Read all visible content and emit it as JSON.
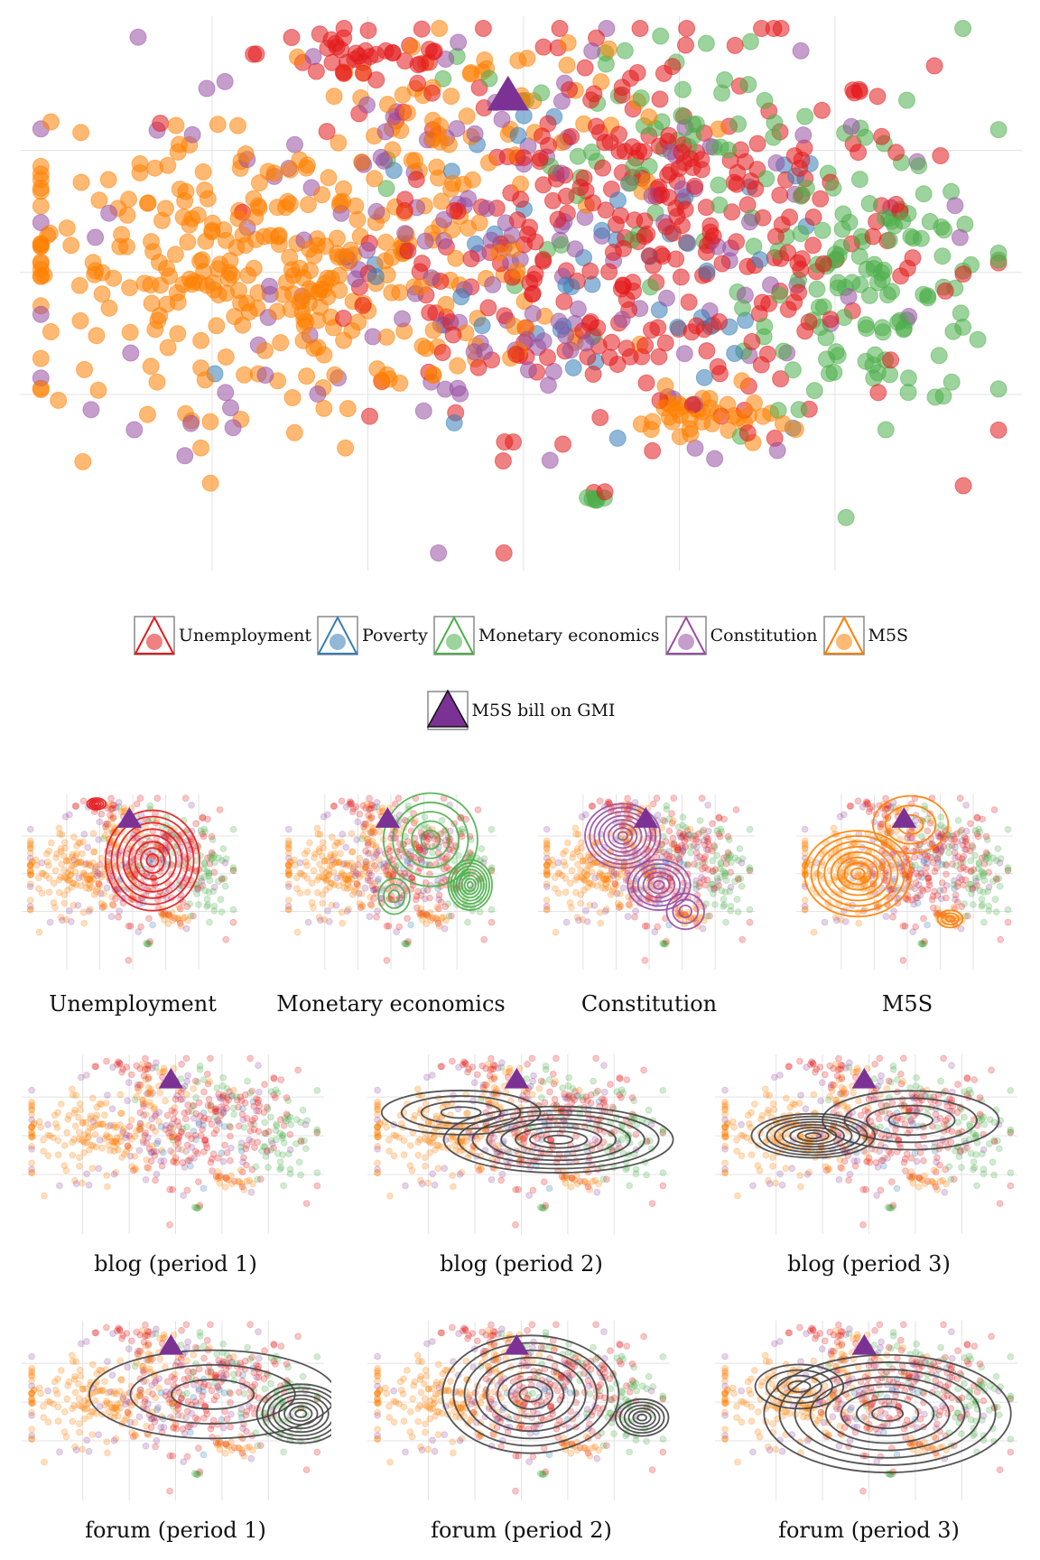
{
  "colors": {
    "unemployment": "#e41a1c",
    "poverty": "#377eb8",
    "monetary": "#4daf4a",
    "constitution": "#984ea3",
    "m5s": "#ff7f00",
    "bill": "#7b3294",
    "kde_gray": "#444444"
  },
  "legend": {
    "items": [
      {
        "key": "unemployment",
        "label": "Unemployment"
      },
      {
        "key": "poverty",
        "label": "Poverty"
      },
      {
        "key": "monetary",
        "label": "Monetary economics"
      },
      {
        "key": "constitution",
        "label": "Constitution"
      },
      {
        "key": "m5s",
        "label": "M5S"
      }
    ],
    "bill_label": "M5S bill on GMI"
  },
  "panels": {
    "topics": [
      "Unemployment",
      "Monetary economics",
      "Constitution",
      "M5S"
    ],
    "blog": [
      "blog (period 1)",
      "blog (period 2)",
      "blog (period 3)"
    ],
    "forum": [
      "forum (period 1)",
      "forum (period 2)",
      "forum (period 3)"
    ]
  },
  "chart_data": {
    "type": "scatter",
    "title": "",
    "xlabel": "",
    "ylabel": "",
    "xlim": [
      -3.2,
      3.2
    ],
    "ylim": [
      -2.4,
      2.1
    ],
    "grid": true,
    "bill_point": {
      "x": -0.1,
      "y": 1.45
    },
    "series": [
      {
        "name": "Unemployment",
        "clusters": [
          {
            "cx": 0.8,
            "cy": 0.3,
            "sx": 0.9,
            "sy": 0.8,
            "n": 340
          },
          {
            "cx": -1.0,
            "cy": 1.8,
            "sx": 0.35,
            "sy": 0.15,
            "n": 40
          }
        ]
      },
      {
        "name": "Poverty",
        "clusters": [
          {
            "cx": 0.4,
            "cy": -0.2,
            "sx": 0.9,
            "sy": 0.7,
            "n": 50
          }
        ]
      },
      {
        "name": "Monetary economics",
        "clusters": [
          {
            "cx": 2.3,
            "cy": -0.2,
            "sx": 0.4,
            "sy": 0.45,
            "n": 110
          },
          {
            "cx": 1.0,
            "cy": 0.9,
            "sx": 0.9,
            "sy": 0.6,
            "n": 80
          },
          {
            "cx": 0.45,
            "cy": -1.85,
            "sx": 0.04,
            "sy": 0.03,
            "n": 6
          }
        ]
      },
      {
        "name": "Constitution",
        "clusters": [
          {
            "cx": -0.3,
            "cy": 0.2,
            "sx": 1.3,
            "sy": 0.9,
            "n": 170
          }
        ]
      },
      {
        "name": "M5S",
        "clusters": [
          {
            "cx": -1.6,
            "cy": 0.0,
            "sx": 0.9,
            "sy": 0.55,
            "n": 330
          },
          {
            "cx": -0.4,
            "cy": 1.3,
            "sx": 0.6,
            "sy": 0.4,
            "n": 60
          },
          {
            "cx": 1.15,
            "cy": -1.2,
            "sx": 0.22,
            "sy": 0.12,
            "n": 40
          }
        ]
      }
    ],
    "density_panels": [
      {
        "label": "Unemployment",
        "color": "unemployment",
        "peaks": [
          {
            "cx": 0.6,
            "cy": 0.35,
            "sx": 0.75,
            "sy": 0.7,
            "w": 1.0
          },
          {
            "cx": -1.1,
            "cy": 1.85,
            "sx": 0.15,
            "sy": 0.08,
            "w": 0.55
          }
        ]
      },
      {
        "label": "Monetary economics",
        "color": "monetary",
        "peaks": [
          {
            "cx": 2.4,
            "cy": -0.3,
            "sx": 0.35,
            "sy": 0.35,
            "w": 1.0
          },
          {
            "cx": 1.2,
            "cy": 0.9,
            "sx": 0.75,
            "sy": 0.65,
            "w": 0.6
          },
          {
            "cx": 0.1,
            "cy": -0.6,
            "sx": 0.25,
            "sy": 0.25,
            "w": 0.35
          }
        ]
      },
      {
        "label": "Constitution",
        "color": "constitution",
        "peaks": [
          {
            "cx": -0.8,
            "cy": 1.0,
            "sx": 0.6,
            "sy": 0.45,
            "w": 1.0
          },
          {
            "cx": 0.3,
            "cy": -0.3,
            "sx": 0.5,
            "sy": 0.35,
            "w": 0.7
          },
          {
            "cx": 1.1,
            "cy": -1.0,
            "sx": 0.3,
            "sy": 0.25,
            "w": 0.4
          }
        ]
      },
      {
        "label": "M5S",
        "color": "m5s",
        "peaks": [
          {
            "cx": -1.5,
            "cy": 0.0,
            "sx": 0.85,
            "sy": 0.6,
            "w": 1.0
          },
          {
            "cx": 0.1,
            "cy": 1.3,
            "sx": 0.6,
            "sy": 0.4,
            "w": 0.4
          },
          {
            "cx": 1.3,
            "cy": -1.2,
            "sx": 0.2,
            "sy": 0.12,
            "w": 0.35
          }
        ]
      },
      {
        "label": "blog (period 1)",
        "color": "kde_gray",
        "peaks": []
      },
      {
        "label": "blog (period 2)",
        "color": "kde_gray",
        "peaks": [
          {
            "cx": 0.8,
            "cy": -0.1,
            "sx": 1.3,
            "sy": 0.45,
            "w": 1.0
          },
          {
            "cx": -1.3,
            "cy": 0.6,
            "sx": 0.9,
            "sy": 0.3,
            "w": 0.45
          }
        ]
      },
      {
        "label": "blog (period 3)",
        "color": "kde_gray",
        "peaks": [
          {
            "cx": -1.2,
            "cy": 0.0,
            "sx": 0.7,
            "sy": 0.3,
            "w": 1.0
          },
          {
            "cx": 0.9,
            "cy": 0.4,
            "sx": 1.0,
            "sy": 0.4,
            "w": 0.55
          }
        ]
      },
      {
        "label": "forum (period 1)",
        "color": "kde_gray",
        "peaks": [
          {
            "cx": 2.7,
            "cy": -0.3,
            "sx": 0.5,
            "sy": 0.4,
            "w": 1.0
          },
          {
            "cx": 0.8,
            "cy": 0.2,
            "sx": 1.4,
            "sy": 0.6,
            "w": 0.35
          }
        ]
      },
      {
        "label": "forum (period 2)",
        "color": "kde_gray",
        "peaks": [
          {
            "cx": 0.2,
            "cy": 0.2,
            "sx": 1.0,
            "sy": 0.8,
            "w": 1.0
          },
          {
            "cx": 2.6,
            "cy": -0.4,
            "sx": 0.3,
            "sy": 0.25,
            "w": 0.7
          }
        ]
      },
      {
        "label": "forum (period 3)",
        "color": "kde_gray",
        "peaks": [
          {
            "cx": 0.4,
            "cy": -0.3,
            "sx": 1.4,
            "sy": 0.8,
            "w": 1.0
          },
          {
            "cx": -1.5,
            "cy": 0.4,
            "sx": 0.5,
            "sy": 0.3,
            "w": 0.5
          }
        ]
      }
    ]
  }
}
